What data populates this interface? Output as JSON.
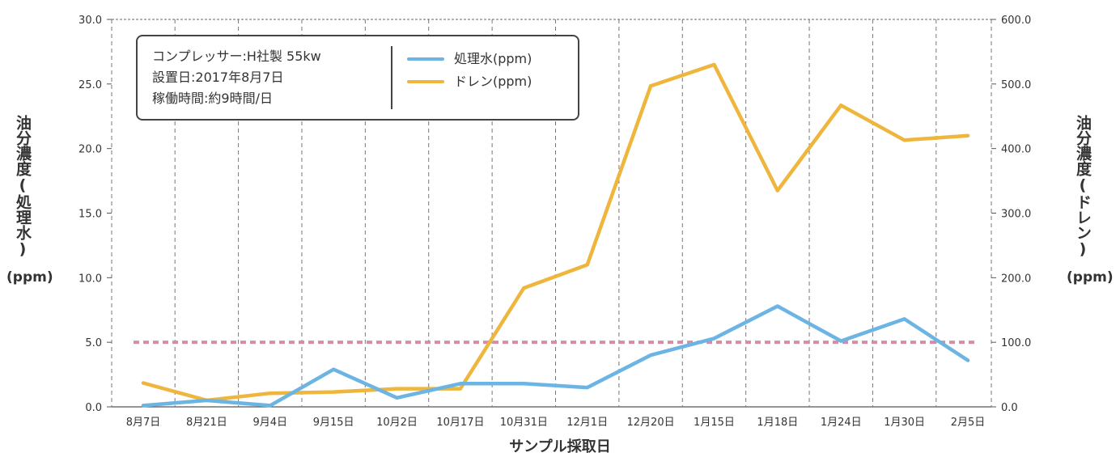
{
  "info_box": {
    "lines": [
      "コンプレッサー:H社製 55kw",
      "設置日:2017年8月7日",
      "稼働時間:約9時間/日"
    ]
  },
  "y_label_left": {
    "text": "油分濃度(処理水)",
    "unit": "(ppm)"
  },
  "y_label_right": {
    "text": "油分濃度(ドレン)",
    "unit": "(ppm)"
  },
  "chart_data": {
    "type": "line",
    "xlabel": "サンプル採取日",
    "categories": [
      "8月7日",
      "8月21日",
      "9月4日",
      "9月15日",
      "10月2日",
      "10月17日",
      "10月31日",
      "12月1日",
      "12月20日",
      "1月15日",
      "1月18日",
      "1月24日",
      "1月30日",
      "2月5日"
    ],
    "y_left": {
      "ylim": [
        0,
        30
      ],
      "ticks": [
        "0.0",
        "5.0",
        "10.0",
        "15.0",
        "20.0",
        "25.0",
        "30.0"
      ]
    },
    "y_right": {
      "ylim": [
        0,
        600
      ],
      "ticks": [
        "0.0",
        "100.0",
        "200.0",
        "300.0",
        "400.0",
        "500.0",
        "600.0"
      ]
    },
    "series": [
      {
        "name": "処理水(ppm)",
        "axis": "left",
        "color": "#6cb4e4",
        "values": [
          0.1,
          0.5,
          0.1,
          2.9,
          0.7,
          1.8,
          1.8,
          1.5,
          4.0,
          5.3,
          7.8,
          5.1,
          6.8,
          3.6
        ]
      },
      {
        "name": "ドレン(ppm)",
        "axis": "right",
        "color": "#eeb63c",
        "values": [
          37,
          10,
          21,
          23,
          28,
          28,
          184,
          220,
          497,
          530,
          335,
          467,
          413,
          420
        ]
      }
    ],
    "reference_line": {
      "value": 5.0,
      "axis": "left",
      "color": "#d88aa6",
      "style": "dashed"
    },
    "grid": {
      "vertical": "dashed",
      "horizontal": "top-and-bottom"
    }
  }
}
